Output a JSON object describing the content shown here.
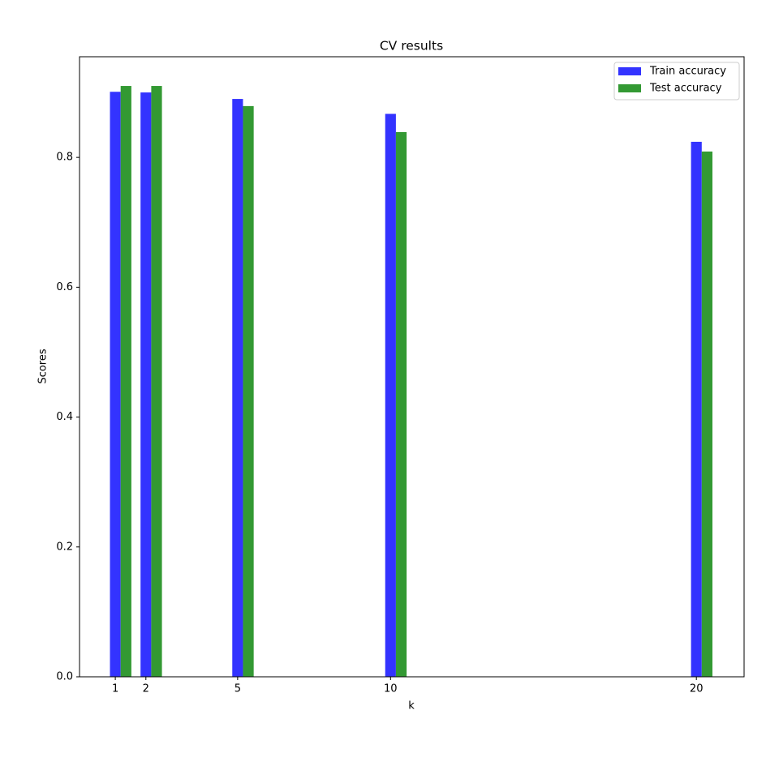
{
  "chart_data": {
    "type": "bar",
    "title": "CV results",
    "x_label": "k",
    "y_label": "Scores",
    "x": [
      1,
      2,
      5,
      10,
      20
    ],
    "series": [
      {
        "name": "Train accuracy",
        "color": "#3333ff",
        "values": [
          0.901,
          0.9,
          0.89,
          0.867,
          0.824
        ]
      },
      {
        "name": "Test accuracy",
        "color": "#339933",
        "values": [
          0.91,
          0.91,
          0.879,
          0.839,
          0.809
        ]
      }
    ],
    "xlim": [
      -0.17,
      21.56
    ],
    "xticks": [
      1,
      2,
      5,
      10,
      20
    ],
    "ylim": [
      0,
      0.955
    ],
    "yticks": [
      {
        "value": 0,
        "label": "0.0"
      },
      0.2,
      0.4,
      0.6,
      0.8
    ],
    "legend": "upper right"
  }
}
